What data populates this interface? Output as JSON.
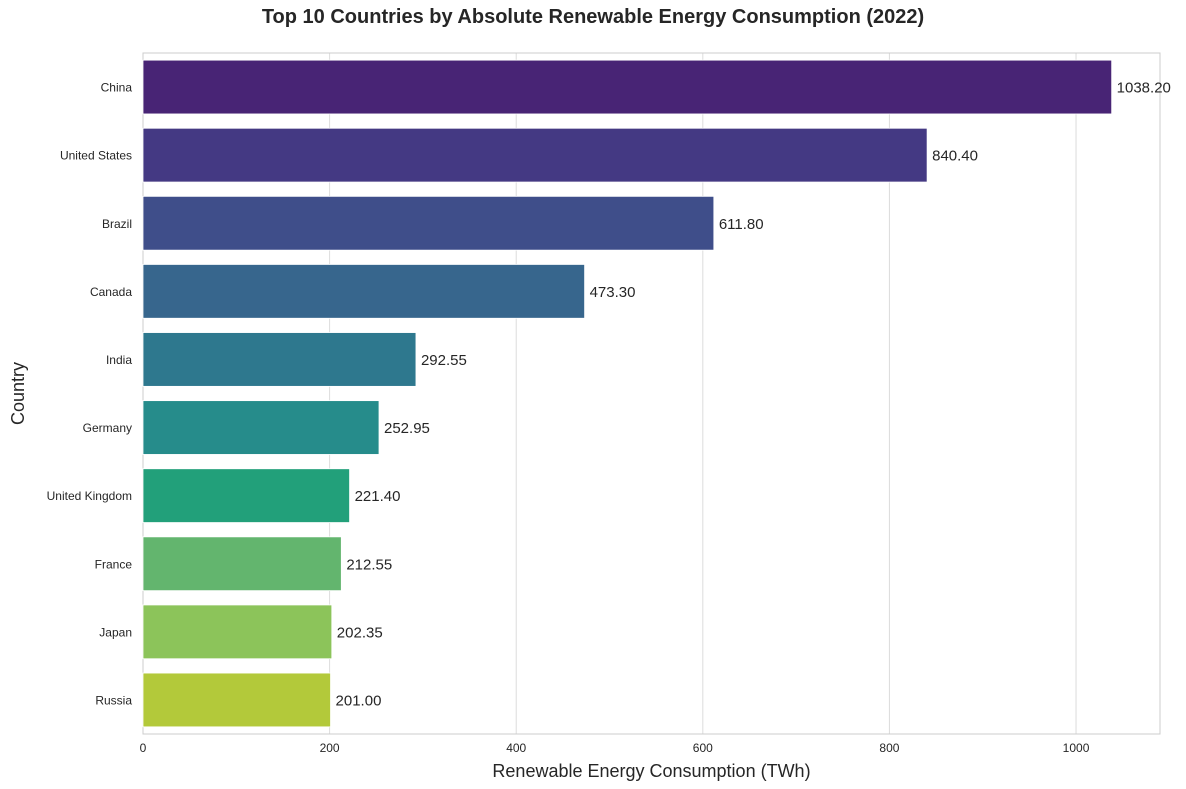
{
  "chart_data": {
    "type": "bar",
    "orientation": "horizontal",
    "title": "Top 10 Countries by Absolute Renewable Energy Consumption (2022)",
    "xlabel": "Renewable Energy Consumption (TWh)",
    "ylabel": "Country",
    "xlim": [
      0,
      1090
    ],
    "xticks": [
      0,
      200,
      400,
      600,
      800,
      1000
    ],
    "grid": true,
    "categories": [
      "China",
      "United States",
      "Brazil",
      "Canada",
      "India",
      "Germany",
      "United Kingdom",
      "France",
      "Japan",
      "Russia"
    ],
    "values": [
      1038.2,
      840.4,
      611.8,
      473.3,
      292.55,
      252.95,
      221.4,
      212.55,
      202.35,
      201.0
    ],
    "data_labels": [
      "1038.20",
      "840.40",
      "611.80",
      "473.30",
      "292.55",
      "252.95",
      "221.40",
      "212.55",
      "202.35",
      "201.00"
    ],
    "colors": [
      "#482475",
      "#443983",
      "#3f4e8a",
      "#37668d",
      "#2e788e",
      "#268c8b",
      "#22a07a",
      "#63b56e",
      "#8cc45a",
      "#b3c93a"
    ]
  }
}
